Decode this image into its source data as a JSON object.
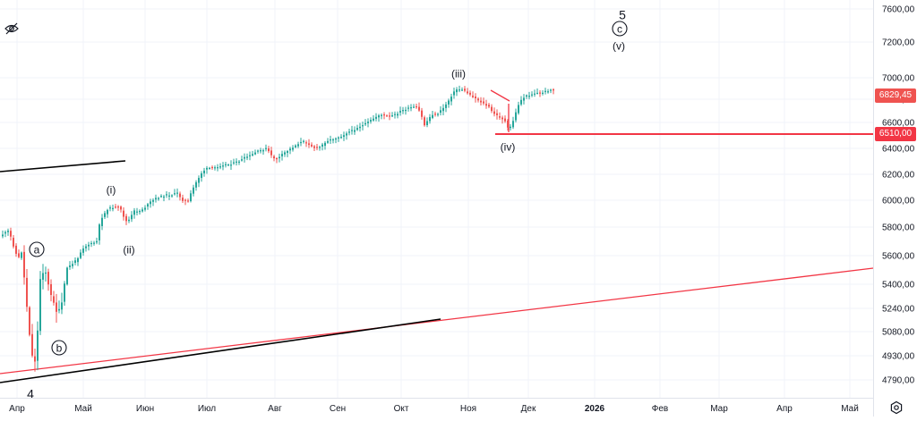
{
  "chart_data": {
    "type": "candlestick",
    "ylim": [
      4700,
      7700
    ],
    "y_ticks": [
      "7600,00",
      "7200,00",
      "7000,00",
      "6800,00",
      "6600,00",
      "6400,00",
      "6200,00",
      "6000,00",
      "5800,00",
      "5600,00",
      "5400,00",
      "5240,00",
      "5080,00",
      "4930,00",
      "4790,00"
    ],
    "x_ticks": [
      "Апр",
      "Май",
      "Июн",
      "Июл",
      "Авг",
      "Сен",
      "Окт",
      "Ноя",
      "Дек",
      "2026",
      "Фев",
      "Мар",
      "Апр",
      "Май"
    ],
    "last_price": {
      "label": "6829,45",
      "value": 6829.45,
      "color": "#ef5350"
    },
    "level": {
      "label": "6510,00",
      "value": 6510.0,
      "color": "#f23645"
    },
    "wave_labels": [
      {
        "text": "4",
        "circled": false
      },
      {
        "text": "a",
        "circled": true
      },
      {
        "text": "b",
        "circled": true
      },
      {
        "text": "(i)",
        "circled": false
      },
      {
        "text": "(ii)",
        "circled": false
      },
      {
        "text": "(iii)",
        "circled": false
      },
      {
        "text": "(iv)",
        "circled": false
      },
      {
        "text": "5",
        "circled": false
      },
      {
        "text": "c",
        "circled": true
      },
      {
        "text": "(v)",
        "circled": false
      }
    ],
    "colors": {
      "up": "#26a69a",
      "down": "#ef5350",
      "trendline_red": "#f23645",
      "trendline_black": "#000000",
      "grid": "#f0f3fa"
    },
    "grid": true
  },
  "icons": {
    "eye": "eye-slash-icon",
    "settings": "settings-icon"
  }
}
